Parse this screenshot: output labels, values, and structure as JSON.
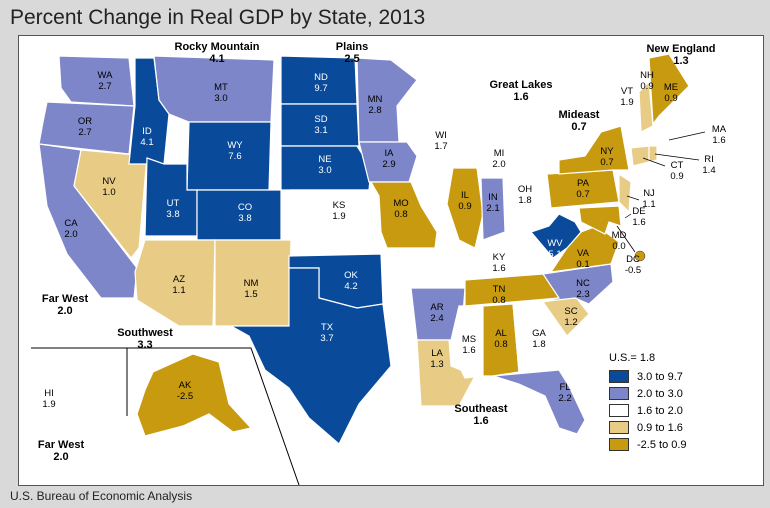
{
  "title": "Percent Change in Real GDP by State, 2013",
  "source": "U.S. Bureau of Economic Analysis",
  "colors": {
    "c1": "#0a4a9a",
    "c2": "#7d86c8",
    "c3": "#ffffff",
    "c4": "#e8cc86",
    "c5": "#c89a10"
  },
  "legend": {
    "us_label": "U.S.= 1.8",
    "classes": [
      {
        "range": "3.0 to 9.7",
        "color": "c1"
      },
      {
        "range": "2.0 to 3.0",
        "color": "c2"
      },
      {
        "range": "1.6 to 2.0",
        "color": "c3"
      },
      {
        "range": "0.9 to 1.6",
        "color": "c4"
      },
      {
        "range": "-2.5 to 0.9",
        "color": "c5"
      }
    ]
  },
  "regions": {
    "rocky_mountain": {
      "name": "Rocky Mountain",
      "value": "4.1"
    },
    "plains": {
      "name": "Plains",
      "value": "2.5"
    },
    "great_lakes": {
      "name": "Great Lakes",
      "value": "1.6"
    },
    "new_england": {
      "name": "New England",
      "value": "1.3"
    },
    "mideast": {
      "name": "Mideast",
      "value": "0.7"
    },
    "far_west": {
      "name": "Far West",
      "value": "2.0"
    },
    "southwest": {
      "name": "Southwest",
      "value": "3.3"
    },
    "southeast": {
      "name": "Southeast",
      "value": "1.6"
    },
    "far_west_inset": {
      "name": "Far West",
      "value": "2.0"
    }
  },
  "states": [
    {
      "abbr": "WA",
      "value": "2.7",
      "color": "c2"
    },
    {
      "abbr": "OR",
      "value": "2.7",
      "color": "c2"
    },
    {
      "abbr": "CA",
      "value": "2.0",
      "color": "c2"
    },
    {
      "abbr": "NV",
      "value": "1.0",
      "color": "c4"
    },
    {
      "abbr": "ID",
      "value": "4.1",
      "color": "c1"
    },
    {
      "abbr": "MT",
      "value": "3.0",
      "color": "c2"
    },
    {
      "abbr": "WY",
      "value": "7.6",
      "color": "c1"
    },
    {
      "abbr": "UT",
      "value": "3.8",
      "color": "c1"
    },
    {
      "abbr": "CO",
      "value": "3.8",
      "color": "c1"
    },
    {
      "abbr": "AZ",
      "value": "1.1",
      "color": "c4"
    },
    {
      "abbr": "NM",
      "value": "1.5",
      "color": "c4"
    },
    {
      "abbr": "ND",
      "value": "9.7",
      "color": "c1"
    },
    {
      "abbr": "SD",
      "value": "3.1",
      "color": "c1"
    },
    {
      "abbr": "NE",
      "value": "3.0",
      "color": "c1"
    },
    {
      "abbr": "KS",
      "value": "1.9",
      "color": "c3"
    },
    {
      "abbr": "OK",
      "value": "4.2",
      "color": "c1"
    },
    {
      "abbr": "TX",
      "value": "3.7",
      "color": "c1"
    },
    {
      "abbr": "MN",
      "value": "2.8",
      "color": "c2"
    },
    {
      "abbr": "IA",
      "value": "2.9",
      "color": "c2"
    },
    {
      "abbr": "MO",
      "value": "0.8",
      "color": "c5"
    },
    {
      "abbr": "AR",
      "value": "2.4",
      "color": "c2"
    },
    {
      "abbr": "LA",
      "value": "1.3",
      "color": "c4"
    },
    {
      "abbr": "WI",
      "value": "1.7",
      "color": "c3"
    },
    {
      "abbr": "IL",
      "value": "0.9",
      "color": "c5"
    },
    {
      "abbr": "MI",
      "value": "2.0",
      "color": "c3"
    },
    {
      "abbr": "IN",
      "value": "2.1",
      "color": "c2"
    },
    {
      "abbr": "OH",
      "value": "1.8",
      "color": "c3"
    },
    {
      "abbr": "KY",
      "value": "1.6",
      "color": "c3"
    },
    {
      "abbr": "TN",
      "value": "0.8",
      "color": "c5"
    },
    {
      "abbr": "MS",
      "value": "1.6",
      "color": "c3"
    },
    {
      "abbr": "AL",
      "value": "0.8",
      "color": "c5"
    },
    {
      "abbr": "GA",
      "value": "1.8",
      "color": "c3"
    },
    {
      "abbr": "FL",
      "value": "2.2",
      "color": "c2"
    },
    {
      "abbr": "SC",
      "value": "1.2",
      "color": "c4"
    },
    {
      "abbr": "NC",
      "value": "2.3",
      "color": "c2"
    },
    {
      "abbr": "VA",
      "value": "0.1",
      "color": "c5"
    },
    {
      "abbr": "WV",
      "value": "5.1",
      "color": "c1"
    },
    {
      "abbr": "PA",
      "value": "0.7",
      "color": "c5"
    },
    {
      "abbr": "NY",
      "value": "0.7",
      "color": "c5"
    },
    {
      "abbr": "NJ",
      "value": "1.1",
      "color": "c4"
    },
    {
      "abbr": "DE",
      "value": "1.6",
      "color": "c3"
    },
    {
      "abbr": "MD",
      "value": "0.0",
      "color": "c5"
    },
    {
      "abbr": "DC",
      "value": "-0.5",
      "color": "c5"
    },
    {
      "abbr": "VT",
      "value": "1.9",
      "color": "c3"
    },
    {
      "abbr": "NH",
      "value": "0.9",
      "color": "c4"
    },
    {
      "abbr": "ME",
      "value": "0.9",
      "color": "c5"
    },
    {
      "abbr": "MA",
      "value": "1.6",
      "color": "c3"
    },
    {
      "abbr": "CT",
      "value": "0.9",
      "color": "c4"
    },
    {
      "abbr": "RI",
      "value": "1.4",
      "color": "c4"
    },
    {
      "abbr": "AK",
      "value": "-2.5",
      "color": "c5"
    },
    {
      "abbr": "HI",
      "value": "1.9",
      "color": "c3"
    }
  ]
}
